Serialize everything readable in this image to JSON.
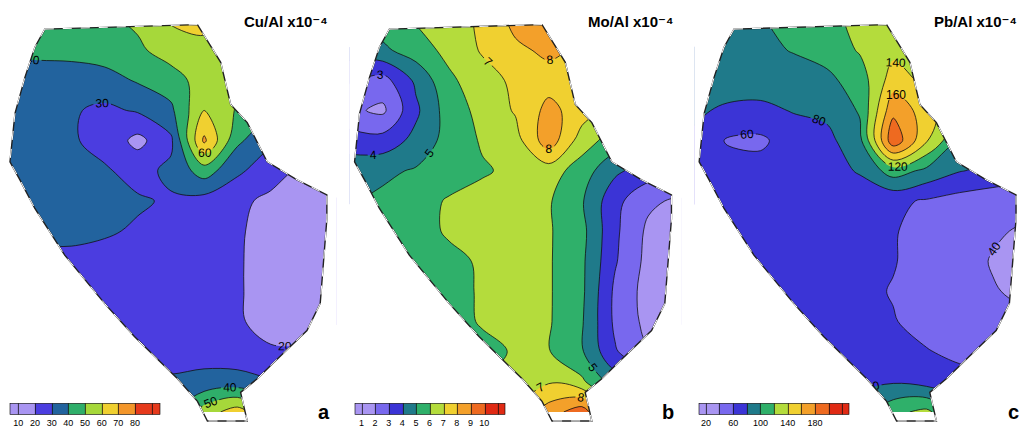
{
  "chart_data": [
    {
      "type": "contour",
      "title": "Cu/Al x10⁻⁴",
      "label": "a",
      "tick_labels": false,
      "xlim": [
        0,
        10
      ],
      "ylim": [
        -0.5,
        13.5
      ],
      "x": [
        0,
        1,
        2,
        3,
        4,
        5,
        6,
        7,
        8,
        9,
        10
      ],
      "y": [
        0,
        1,
        2,
        3,
        4,
        5,
        6,
        7,
        8,
        9,
        10,
        11,
        12,
        13
      ],
      "z": [
        [
          null,
          null,
          null,
          null,
          null,
          40,
          55,
          65,
          50,
          null,
          null
        ],
        [
          null,
          null,
          null,
          null,
          null,
          31,
          33,
          34,
          31,
          null,
          null
        ],
        [
          null,
          null,
          null,
          null,
          28,
          27,
          26,
          24,
          21,
          21,
          null
        ],
        [
          null,
          null,
          null,
          26,
          26,
          25,
          24,
          21,
          17,
          16,
          16
        ],
        [
          null,
          null,
          27,
          26,
          25,
          25,
          24,
          21,
          16,
          15,
          15
        ],
        [
          null,
          28,
          28,
          27,
          26,
          25,
          24,
          21,
          16,
          15,
          15
        ],
        [
          null,
          32,
          32,
          31,
          29,
          27,
          25,
          21,
          17,
          15,
          15
        ],
        [
          33,
          33,
          32,
          31,
          31,
          29,
          26,
          22,
          18,
          16,
          16
        ],
        [
          34,
          33,
          32,
          31,
          27,
          32,
          45,
          32,
          24,
          18,
          null
        ],
        [
          34,
          33,
          31,
          27,
          17,
          28,
          72,
          42,
          32,
          null,
          null
        ],
        [
          35,
          33,
          31,
          28,
          31,
          38,
          60,
          49,
          null,
          null,
          null
        ],
        [
          37,
          36,
          35,
          36,
          41,
          45,
          55,
          51,
          null,
          null,
          null
        ],
        [
          41,
          42,
          43,
          45,
          48,
          55,
          58,
          55,
          null,
          null,
          null
        ],
        [
          null,
          45,
          45,
          48,
          52,
          61,
          62,
          null,
          null,
          null,
          null
        ]
      ],
      "levels": [
        10,
        20,
        30,
        40,
        50,
        60,
        70,
        80,
        90
      ],
      "colors": [
        "#a995f2",
        "#4b3de0",
        "#22639e",
        "#2fae6a",
        "#a6d83a",
        "#f0d030",
        "#f3962a",
        "#e63a1c"
      ],
      "colorbar": {
        "ticks": [
          10,
          20,
          30,
          40,
          50,
          60,
          70,
          80
        ]
      }
    },
    {
      "type": "contour",
      "title": "Mo/Al x10⁻⁴",
      "label": "b",
      "tick_labels": false,
      "xlim": [
        0,
        10
      ],
      "ylim": [
        -0.5,
        13.5
      ],
      "x": [
        0,
        1,
        2,
        3,
        4,
        5,
        6,
        7,
        8,
        9,
        10
      ],
      "y": [
        0,
        1,
        2,
        3,
        4,
        5,
        6,
        7,
        8,
        9,
        10,
        11,
        12,
        13
      ],
      "z": [
        [
          null,
          null,
          null,
          null,
          null,
          7.1,
          8.5,
          9.6,
          6.9,
          null,
          null
        ],
        [
          null,
          null,
          null,
          null,
          null,
          6.2,
          6.9,
          6.2,
          4.5,
          null,
          null
        ],
        [
          null,
          null,
          null,
          null,
          5.7,
          6.1,
          6.05,
          5.1,
          3.1,
          2.1,
          null
        ],
        [
          null,
          null,
          null,
          5.6,
          6.1,
          6.2,
          6.1,
          5.1,
          2.8,
          1.7,
          1.6
        ],
        [
          null,
          null,
          5.5,
          5.7,
          6.1,
          6.3,
          6.1,
          5.2,
          2.8,
          1.6,
          1.6
        ],
        [
          null,
          5.3,
          5.6,
          5.8,
          6.1,
          6.4,
          6.1,
          5.2,
          3.1,
          1.7,
          1.6
        ],
        [
          null,
          5.3,
          5.7,
          6.1,
          6.3,
          6.4,
          6.1,
          5.3,
          3.2,
          1.8,
          1.6
        ],
        [
          4.9,
          5.2,
          5.6,
          6.1,
          6.3,
          6.3,
          6.1,
          5.1,
          3.3,
          2.2,
          1.8
        ],
        [
          4.6,
          4.8,
          5.1,
          5.5,
          5.9,
          6.2,
          6.5,
          5.5,
          4.2,
          3.5,
          null
        ],
        [
          3.5,
          3.4,
          4.3,
          5.4,
          6.1,
          6.6,
          8.6,
          6.5,
          5.5,
          null,
          null
        ],
        [
          2.2,
          1.8,
          3.8,
          5.5,
          6.3,
          7.1,
          8.3,
          7.5,
          null,
          null,
          null
        ],
        [
          3.1,
          2.6,
          4.2,
          5.8,
          6.6,
          7.2,
          7.6,
          7.3,
          null,
          null,
          null
        ],
        [
          4.5,
          4.8,
          5.5,
          6.3,
          7.1,
          7.8,
          8.2,
          7.8,
          null,
          null,
          null
        ],
        [
          null,
          5.5,
          6.1,
          6.5,
          7.2,
          8.3,
          8.5,
          null,
          null,
          null,
          null
        ]
      ],
      "levels": [
        1,
        2,
        3,
        4,
        5,
        6,
        7,
        8,
        9,
        10,
        11
      ],
      "colors": [
        "#a995f2",
        "#7868ee",
        "#3b34d6",
        "#1f7a8a",
        "#2fb06a",
        "#b4dc3c",
        "#f0d030",
        "#f3a02a",
        "#ee6a20",
        "#e02a14"
      ],
      "colorbar": {
        "ticks": [
          1,
          2,
          3,
          4,
          5,
          6,
          7,
          8,
          9,
          10
        ]
      }
    },
    {
      "type": "contour",
      "title": "Pb/Al x10⁻⁴",
      "label": "c",
      "tick_labels": false,
      "xlim": [
        0,
        10
      ],
      "ylim": [
        -0.5,
        13.5
      ],
      "x": [
        0,
        1,
        2,
        3,
        4,
        5,
        6,
        7,
        8,
        9,
        10
      ],
      "y": [
        0,
        1,
        2,
        3,
        4,
        5,
        6,
        7,
        8,
        9,
        10,
        11,
        12,
        13
      ],
      "z": [
        [
          null,
          null,
          null,
          null,
          null,
          90,
          115,
          125,
          95,
          null,
          null
        ],
        [
          null,
          null,
          null,
          null,
          null,
          76,
          78,
          72,
          66,
          null,
          null
        ],
        [
          null,
          null,
          null,
          null,
          72,
          69,
          65,
          61,
          56,
          53,
          null
        ],
        [
          null,
          null,
          null,
          71,
          68,
          65,
          61,
          54,
          48,
          44,
          42
        ],
        [
          null,
          null,
          71,
          69,
          67,
          64,
          59,
          52,
          46,
          41,
          37
        ],
        [
          null,
          72,
          71,
          69,
          67,
          65,
          61,
          53,
          46,
          39,
          36
        ],
        [
          null,
          72,
          71,
          69,
          68,
          66,
          61,
          55,
          48,
          42,
          38
        ],
        [
          74,
          72,
          71,
          71,
          71,
          68,
          64,
          58,
          52,
          48,
          45
        ],
        [
          76,
          71,
          68,
          71,
          72,
          82,
          110,
          95,
          81,
          75,
          null
        ],
        [
          78,
          58,
          56,
          71,
          74,
          95,
          195,
          142,
          98,
          null,
          null
        ],
        [
          82,
          78,
          76,
          81,
          85,
          102,
          175,
          150,
          null,
          null,
          null
        ],
        [
          85,
          86,
          88,
          92,
          95,
          110,
          150,
          135,
          null,
          null,
          null
        ],
        [
          91,
          92,
          96,
          101,
          108,
          122,
          135,
          130,
          null,
          null,
          null
        ],
        [
          null,
          95,
          99,
          105,
          115,
          125,
          128,
          null,
          null,
          null,
          null
        ]
      ],
      "levels": [
        20,
        40,
        60,
        80,
        100,
        120,
        140,
        160,
        180,
        200,
        220
      ],
      "colors": [
        "#a995f2",
        "#7868ee",
        "#3b34d6",
        "#1f7a8a",
        "#2fb06a",
        "#b4dc3c",
        "#f0d030",
        "#f3a02a",
        "#ee6a20",
        "#e02a14"
      ],
      "colorbar": {
        "ticks": [
          20,
          60,
          100,
          140,
          180
        ]
      }
    }
  ]
}
